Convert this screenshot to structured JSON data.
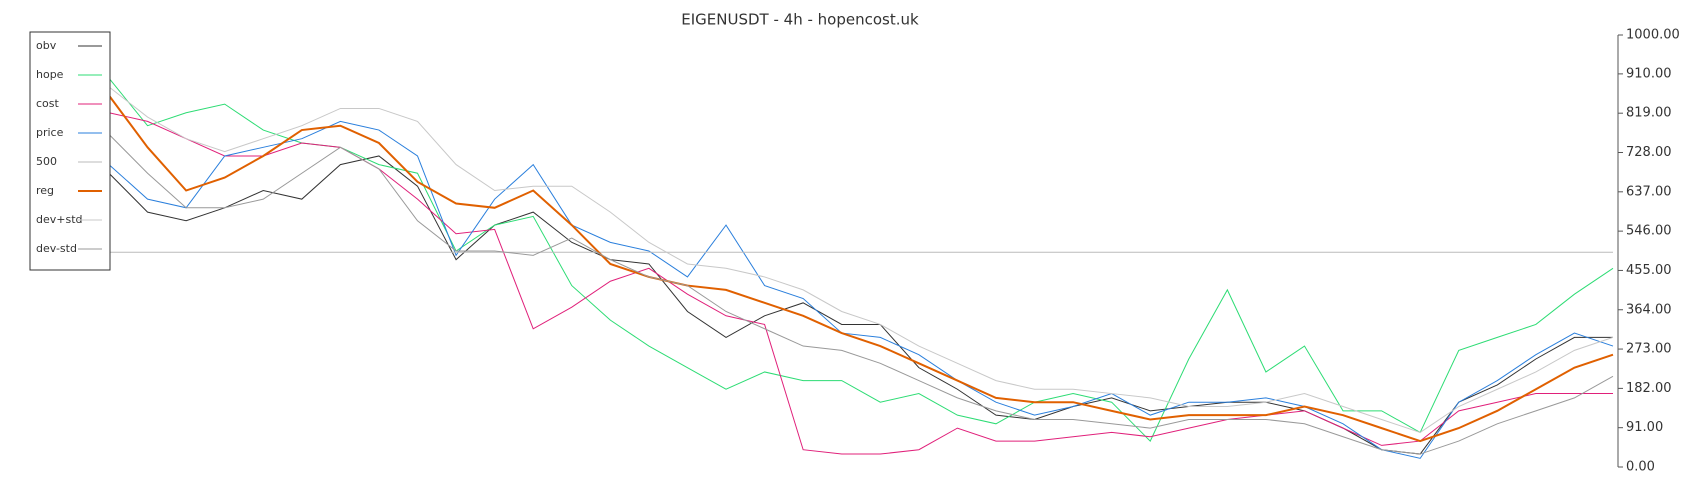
{
  "chart_data": {
    "type": "line",
    "title": "EIGENUSDT - 4h - hopencost.uk",
    "ylim": [
      0,
      1000
    ],
    "yticks": [
      {
        "value": 0,
        "label": "0.00"
      },
      {
        "value": 91,
        "label": "91.00"
      },
      {
        "value": 182,
        "label": "182.00"
      },
      {
        "value": 273,
        "label": "273.00"
      },
      {
        "value": 364,
        "label": "364.00"
      },
      {
        "value": 455,
        "label": "455.00"
      },
      {
        "value": 546,
        "label": "546.00"
      },
      {
        "value": 637,
        "label": "637.00"
      },
      {
        "value": 728,
        "label": "728.00"
      },
      {
        "value": 819,
        "label": "819.00"
      },
      {
        "value": 910,
        "label": "910.00"
      },
      {
        "value": 1000,
        "label": "1000.00"
      }
    ],
    "legend": "upper left",
    "series": [
      {
        "name": "obv",
        "color": "#333333",
        "width": 1,
        "values": [
          680,
          590,
          570,
          600,
          640,
          620,
          700,
          720,
          650,
          480,
          560,
          590,
          520,
          480,
          470,
          360,
          300,
          350,
          380,
          330,
          330,
          230,
          180,
          120,
          110,
          140,
          160,
          130,
          140,
          150,
          150,
          130,
          90,
          40,
          30,
          150,
          190,
          250,
          300,
          300
        ]
      },
      {
        "name": "hope",
        "color": "#2ddc74",
        "width": 1,
        "values": [
          900,
          790,
          820,
          840,
          780,
          750,
          740,
          700,
          680,
          500,
          560,
          580,
          420,
          340,
          280,
          230,
          180,
          220,
          200,
          200,
          150,
          170,
          120,
          100,
          150,
          170,
          150,
          60,
          250,
          410,
          220,
          280,
          130,
          130,
          80,
          270,
          300,
          330,
          400,
          460
        ]
      },
      {
        "name": "cost",
        "color": "#e0207a",
        "width": 1,
        "values": [
          820,
          800,
          760,
          720,
          720,
          750,
          740,
          690,
          620,
          540,
          550,
          320,
          370,
          430,
          460,
          400,
          350,
          330,
          40,
          30,
          30,
          40,
          90,
          60,
          60,
          70,
          80,
          70,
          90,
          110,
          120,
          130,
          90,
          50,
          60,
          130,
          150,
          170,
          170,
          170
        ]
      },
      {
        "name": "price",
        "color": "#2a7fdc",
        "width": 1,
        "values": [
          700,
          620,
          600,
          720,
          740,
          760,
          800,
          780,
          720,
          490,
          620,
          700,
          560,
          520,
          500,
          440,
          560,
          420,
          390,
          310,
          300,
          260,
          200,
          150,
          120,
          140,
          170,
          120,
          150,
          150,
          160,
          140,
          100,
          40,
          20,
          150,
          200,
          260,
          310,
          280
        ]
      },
      {
        "name": "500",
        "color": "#bbbbbb",
        "width": 1,
        "values": [
          497,
          497,
          497,
          497,
          497,
          497,
          497,
          497,
          497,
          497,
          497,
          497,
          497,
          497,
          497,
          497,
          497,
          497,
          497,
          497,
          497,
          497,
          497,
          497,
          497,
          497,
          497,
          497,
          497,
          497,
          497,
          497,
          497,
          497,
          497,
          497,
          497,
          497,
          497,
          497
        ]
      },
      {
        "name": "reg",
        "color": "#e06000",
        "width": 2,
        "values": [
          860,
          740,
          640,
          670,
          720,
          780,
          790,
          750,
          660,
          610,
          600,
          640,
          560,
          470,
          440,
          420,
          410,
          380,
          350,
          310,
          280,
          240,
          200,
          160,
          150,
          150,
          130,
          110,
          120,
          120,
          120,
          140,
          120,
          90,
          60,
          90,
          130,
          180,
          230,
          260
        ]
      },
      {
        "name": "dev+std",
        "color": "#c8c8c8",
        "width": 1,
        "values": [
          880,
          810,
          760,
          730,
          760,
          790,
          830,
          830,
          800,
          700,
          640,
          650,
          650,
          590,
          520,
          470,
          460,
          440,
          410,
          360,
          330,
          280,
          240,
          200,
          180,
          180,
          170,
          160,
          140,
          140,
          150,
          170,
          140,
          110,
          80,
          140,
          180,
          220,
          270,
          300
        ]
      },
      {
        "name": "dev-std",
        "color": "#999999",
        "width": 1,
        "values": [
          770,
          680,
          600,
          600,
          620,
          680,
          740,
          690,
          570,
          500,
          500,
          490,
          530,
          480,
          440,
          420,
          360,
          320,
          280,
          270,
          240,
          200,
          160,
          130,
          110,
          110,
          100,
          90,
          110,
          110,
          110,
          100,
          70,
          40,
          30,
          60,
          100,
          130,
          160,
          210
        ]
      }
    ]
  }
}
